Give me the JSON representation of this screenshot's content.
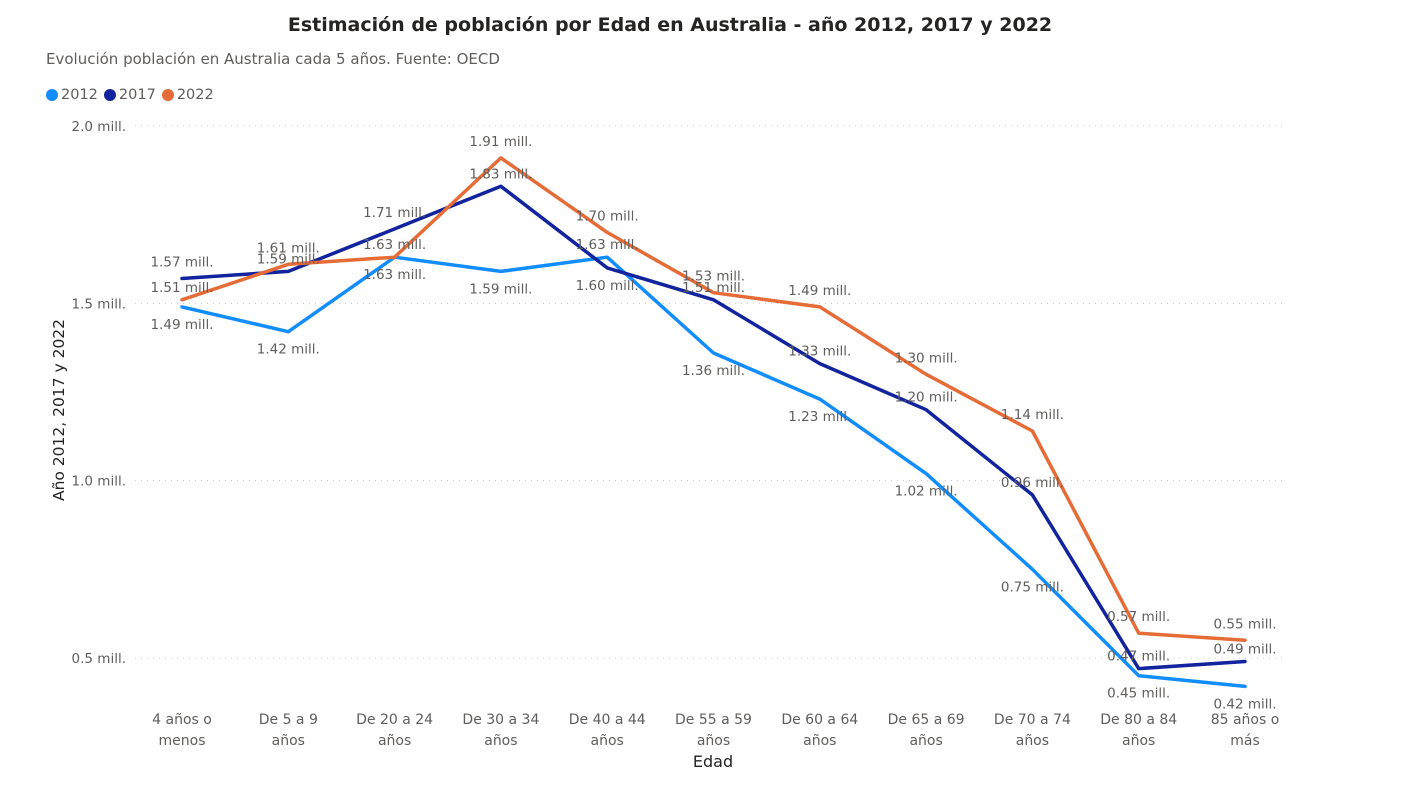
{
  "chart_data": {
    "type": "line",
    "title": "Estimación de población por Edad en Australia - año 2012, 2017 y 2022",
    "subtitle": "Evolución población en Australia cada 5 años. Fuente: OECD",
    "xlabel": "Edad",
    "ylabel": "Año 2012, 2017 y 2022",
    "ylim": [
      0.37,
      2.0
    ],
    "yticks": [
      {
        "value": 2.0,
        "label": "2.0 mill."
      },
      {
        "value": 1.5,
        "label": "1.5 mill."
      },
      {
        "value": 1.0,
        "label": "1.0 mill."
      },
      {
        "value": 0.5,
        "label": "0.5 mill."
      }
    ],
    "grid": true,
    "legend_position": "top-left",
    "categories": [
      [
        "4 años o",
        "menos"
      ],
      [
        "De 5 a 9",
        "años"
      ],
      [
        "De 20 a 24",
        "años"
      ],
      [
        "De 30 a 34",
        "años"
      ],
      [
        "De 40 a 44",
        "años"
      ],
      [
        "De 55 a 59",
        "años"
      ],
      [
        "De 60 a 64",
        "años"
      ],
      [
        "De 65 a 69",
        "años"
      ],
      [
        "De 70 a 74",
        "años"
      ],
      [
        "De 80 a 84",
        "años"
      ],
      [
        "85 años o",
        "más"
      ]
    ],
    "series": [
      {
        "name": "2012",
        "color": "#118dff",
        "values": [
          1.49,
          1.42,
          1.63,
          1.59,
          1.63,
          1.36,
          1.23,
          1.02,
          0.75,
          0.45,
          0.42
        ],
        "labels": [
          "1.49 mill.",
          "1.42 mill.",
          "1.63 mill.",
          "1.59 mill.",
          "1.63 mill.",
          "1.36 mill.",
          "1.23 mill.",
          "1.02 mill.",
          "0.75 mill.",
          "0.45 mill.",
          "0.42 mill."
        ]
      },
      {
        "name": "2017",
        "color": "#12239e",
        "values": [
          1.57,
          1.59,
          1.71,
          1.83,
          1.6,
          1.51,
          1.33,
          1.2,
          0.96,
          0.47,
          0.49
        ],
        "labels": [
          "1.57 mill.",
          "1.59 mill.",
          "1.71 mill.",
          "1.83 mill.",
          "1.60 mill.",
          "1.51 mill.",
          "1.33 mill.",
          "1.20 mill.",
          "0.96 mill.",
          "0.47 mill.",
          "0.49 mill."
        ]
      },
      {
        "name": "2022",
        "color": "#e66c37",
        "values": [
          1.51,
          1.61,
          1.63,
          1.91,
          1.7,
          1.53,
          1.49,
          1.3,
          1.14,
          0.57,
          0.55
        ],
        "labels": [
          "1.51 mill.",
          "1.61 mill.",
          "1.63 mill.",
          "1.91 mill.",
          "1.70 mill.",
          "1.53 mill.",
          "1.49 mill.",
          "1.30 mill.",
          "1.14 mill.",
          "0.57 mill.",
          "0.55 mill."
        ]
      }
    ]
  }
}
